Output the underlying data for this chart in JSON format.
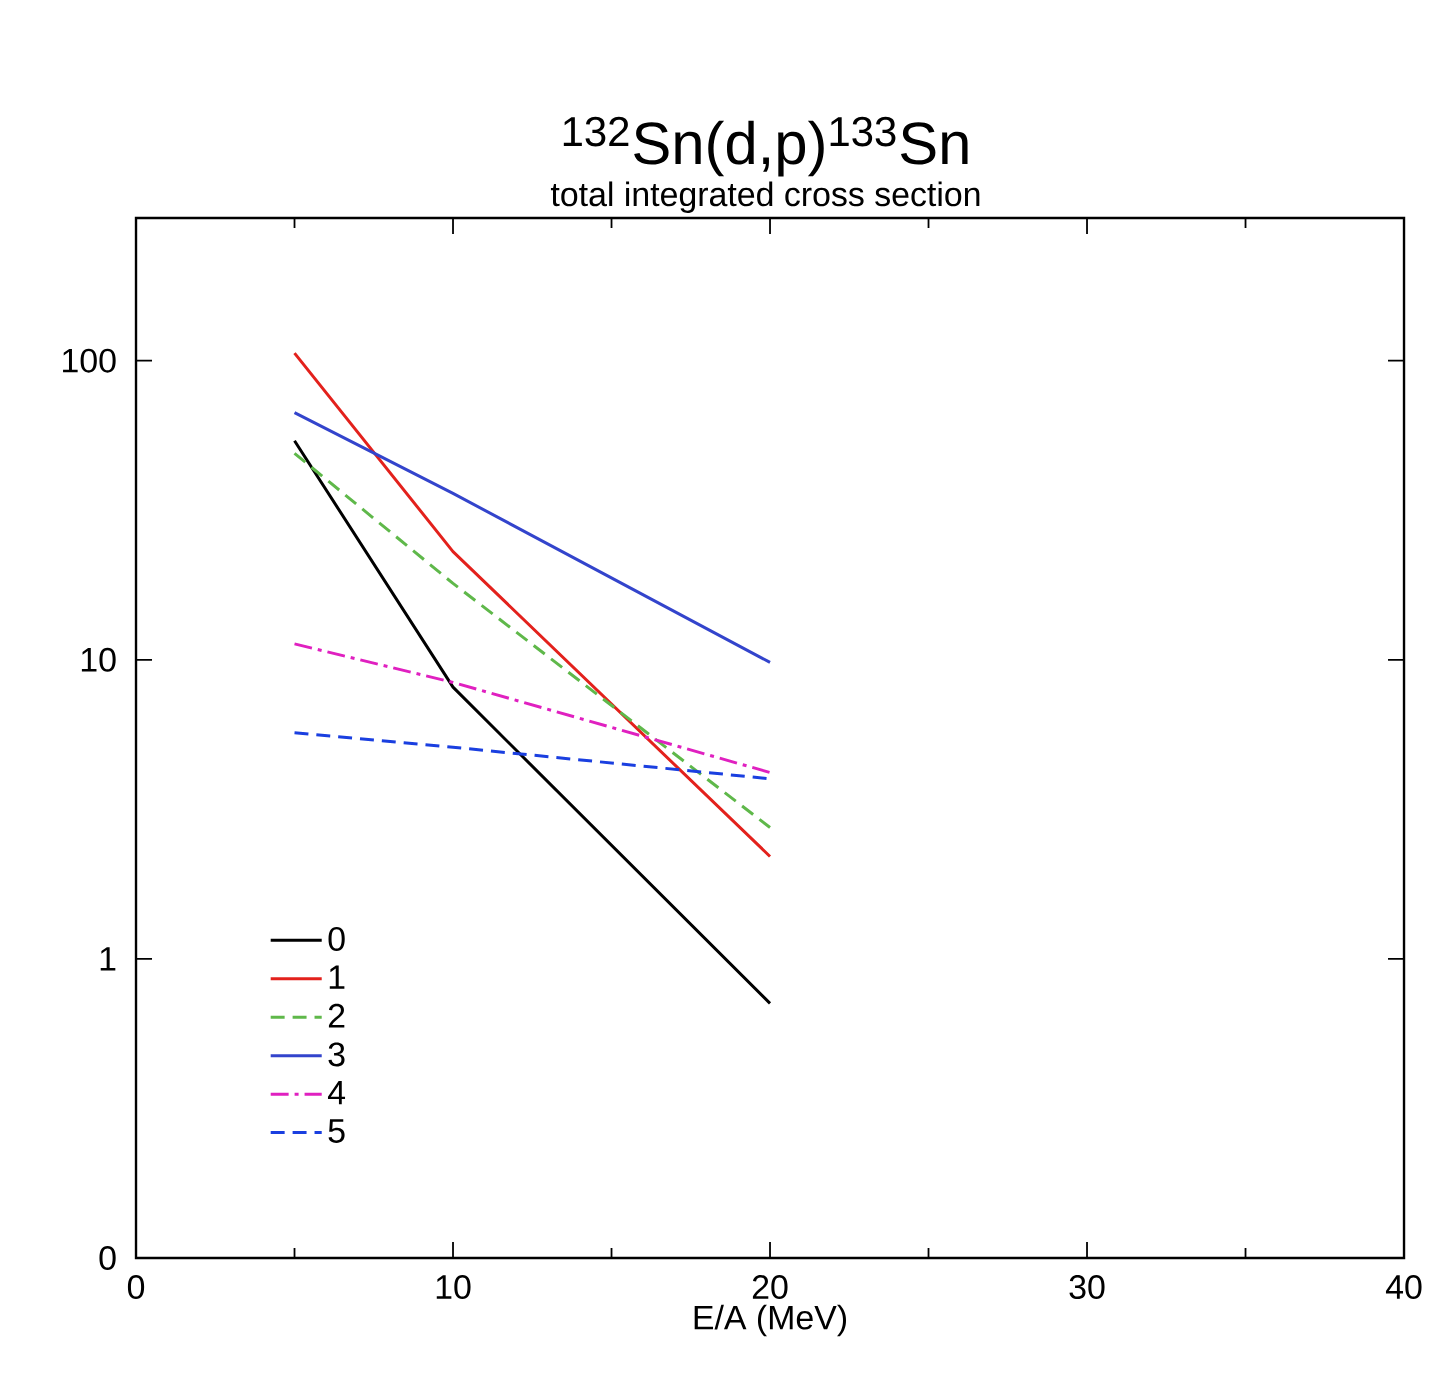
{
  "chart_data": {
    "type": "line",
    "title": "$^{132}$Sn(d,p)$^{133}$Sn",
    "subtitle": "total integrated cross section",
    "xlabel": "E/A (MeV)",
    "x": [
      5,
      10,
      20
    ],
    "series": [
      {
        "name": "0",
        "color": "#000000",
        "line_style": "solid",
        "values": [
          54,
          8.1,
          0.71
        ]
      },
      {
        "name": "1",
        "color": "#e3211c",
        "line_style": "solid",
        "values": [
          106,
          23,
          2.2
        ]
      },
      {
        "name": "2",
        "color": "#5fb84a",
        "line_style": "dashed",
        "values": [
          49,
          18,
          2.75
        ]
      },
      {
        "name": "3",
        "color": "#3344cc",
        "line_style": "solid",
        "values": [
          67,
          36,
          9.8
        ]
      },
      {
        "name": "4",
        "color": "#e020c0",
        "line_style": "dashdot",
        "values": [
          11.3,
          8.4,
          4.2
        ]
      },
      {
        "name": "5",
        "color": "#1a3fe0",
        "line_style": "dashed",
        "values": [
          5.7,
          5.1,
          4.0
        ]
      }
    ],
    "log": "y",
    "xlim": [
      0,
      40
    ],
    "ylim": [
      0.1,
      300
    ],
    "xticks": [
      0,
      10,
      20,
      30,
      40
    ],
    "yticks": [
      {
        "value": 0.1,
        "label": "0"
      },
      1,
      10,
      100
    ],
    "grid": false,
    "legend": "bottom left",
    "marker": "none"
  }
}
